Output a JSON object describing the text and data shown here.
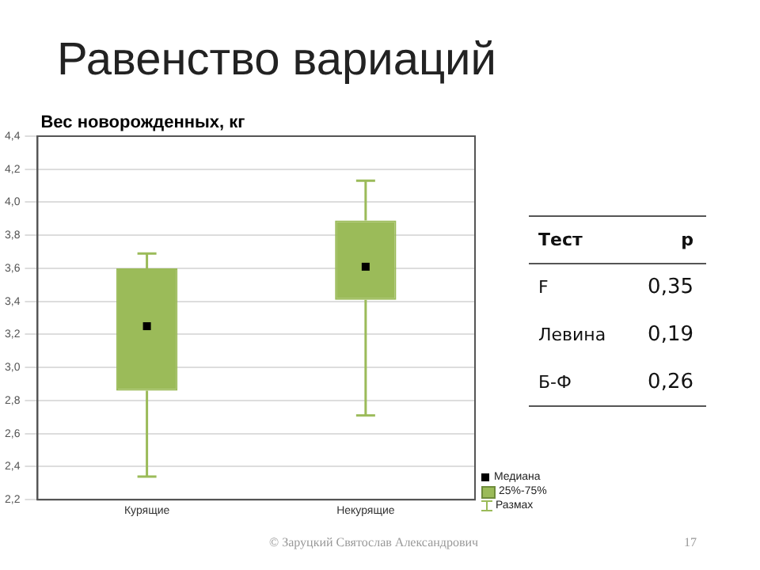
{
  "chart_data": [
    {
      "type": "box",
      "title": "Равенство вариаций",
      "ylabel": "Вес новорожденных, кг",
      "categories": [
        "Курящие",
        "Некурящие"
      ],
      "series": [
        {
          "color": "#9bbb59",
          "boxes": [
            {
              "low": 2.34,
              "q1": 2.86,
              "median": 3.25,
              "q3": 3.6,
              "high": 3.69
            },
            {
              "low": 2.71,
              "q1": 3.41,
              "median": 3.61,
              "q3": 3.89,
              "high": 4.13
            }
          ]
        }
      ],
      "ylim": [
        2.2,
        4.4
      ],
      "yticks": [
        {
          "value": 2.2,
          "label": "2,2"
        },
        {
          "value": 2.4,
          "label": "2,4"
        },
        {
          "value": 2.6,
          "label": "2,6"
        },
        {
          "value": 2.8,
          "label": "2,8"
        },
        {
          "value": 3.0,
          "label": "3,0"
        },
        {
          "value": 3.2,
          "label": "3,2"
        },
        {
          "value": 3.4,
          "label": "3,4"
        },
        {
          "value": 3.6,
          "label": "3,6"
        },
        {
          "value": 3.8,
          "label": "3,8"
        },
        {
          "value": 4.0,
          "label": "4,0"
        },
        {
          "value": 4.2,
          "label": "4,2"
        },
        {
          "value": 4.4,
          "label": "4,4"
        }
      ],
      "grid": "y",
      "annotations": [
        "Медиана",
        "25%-75%",
        "Размах",
        "© Заруцкий Святослав Александрович",
        "17"
      ]
    },
    {
      "type": "other",
      "annotations": [
        "Тест",
        "p",
        "F",
        "0,35",
        "Левина",
        "0,19",
        "Б-Ф",
        "0,26"
      ]
    }
  ]
}
